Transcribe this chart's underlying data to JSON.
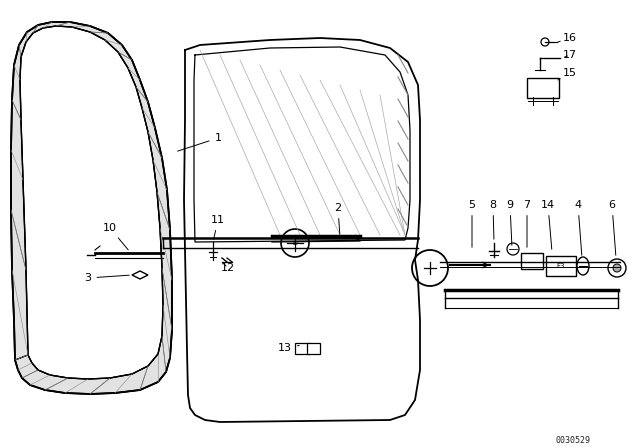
{
  "bg_color": "#ffffff",
  "line_color": "#000000",
  "figsize": [
    6.4,
    4.48
  ],
  "dpi": 100,
  "watermark": "0030529",
  "hatch_color": "#444444"
}
